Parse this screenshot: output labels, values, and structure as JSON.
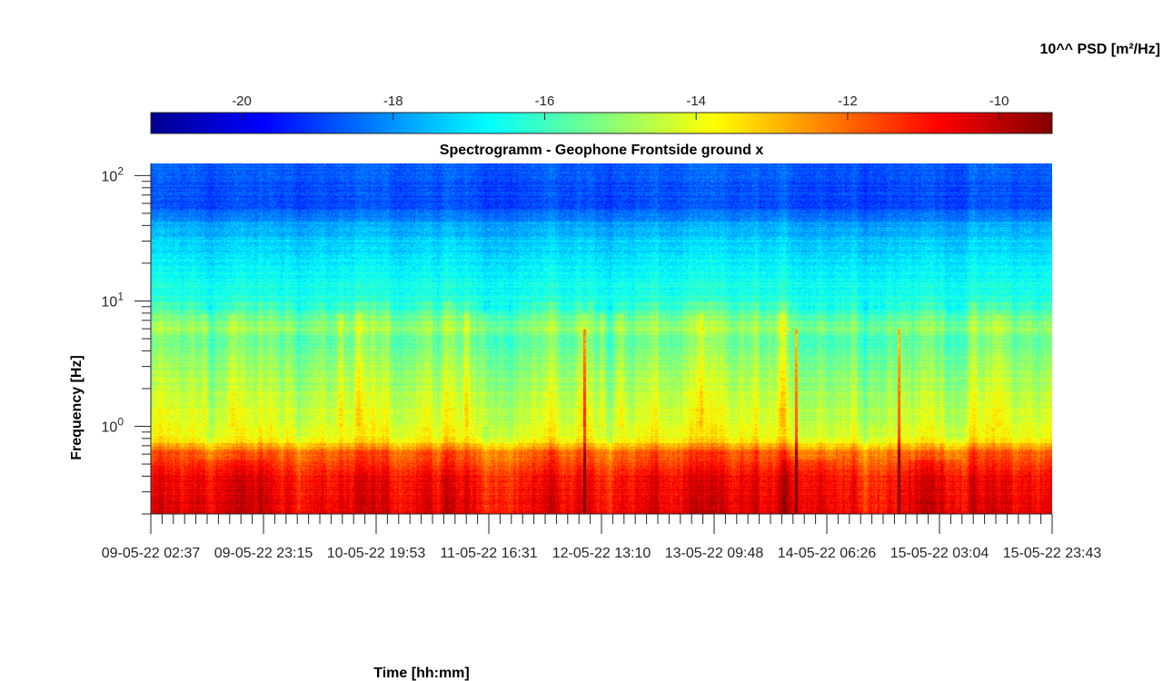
{
  "chart_data": {
    "type": "heatmap",
    "title": "Spectrogramm - Geophone Frontside ground x",
    "xlabel": "Time [hh:mm]",
    "ylabel": "Frequency [Hz]",
    "yscale": "log",
    "ylim": [
      0.2,
      125
    ],
    "x_tick_labels": [
      "09-05-22 02:37",
      "09-05-22 23:15",
      "10-05-22 19:53",
      "11-05-22 16:31",
      "12-05-22 13:10",
      "13-05-22 09:48",
      "14-05-22 06:26",
      "15-05-22 03:04",
      "15-05-22 23:43"
    ],
    "y_ticks": [
      {
        "base": "10",
        "exp": "0",
        "value": 1
      },
      {
        "base": "10",
        "exp": "1",
        "value": 10
      },
      {
        "base": "10",
        "exp": "2",
        "value": 100
      }
    ],
    "colorbar": {
      "label": "10^^ PSD [m²/Hz]",
      "colormap": "jet",
      "range": [
        -21.2,
        -9.3
      ],
      "ticks": [
        "-20",
        "-18",
        "-16",
        "-14",
        "-12",
        "-10"
      ],
      "tick_values": [
        -20,
        -18,
        -16,
        -14,
        -12,
        -10
      ]
    },
    "psd_profile_by_frequency": [
      {
        "freq": 0.2,
        "psd": -10.6
      },
      {
        "freq": 0.4,
        "psd": -10.9
      },
      {
        "freq": 0.62,
        "psd": -12.0
      },
      {
        "freq": 0.8,
        "psd": -13.9
      },
      {
        "freq": 2.0,
        "psd": -14.6
      },
      {
        "freq": 5.0,
        "psd": -15.6
      },
      {
        "freq": 6.0,
        "psd": -14.9
      },
      {
        "freq": 10.0,
        "psd": -16.3
      },
      {
        "freq": 20.0,
        "psd": -16.9
      },
      {
        "freq": 40.0,
        "psd": -17.7
      },
      {
        "freq": 60.0,
        "psd": -18.9
      },
      {
        "freq": 125.0,
        "psd": -18.6
      }
    ],
    "transient_events_x_fraction": [
      0.481,
      0.716,
      0.83
    ],
    "grid": false
  }
}
